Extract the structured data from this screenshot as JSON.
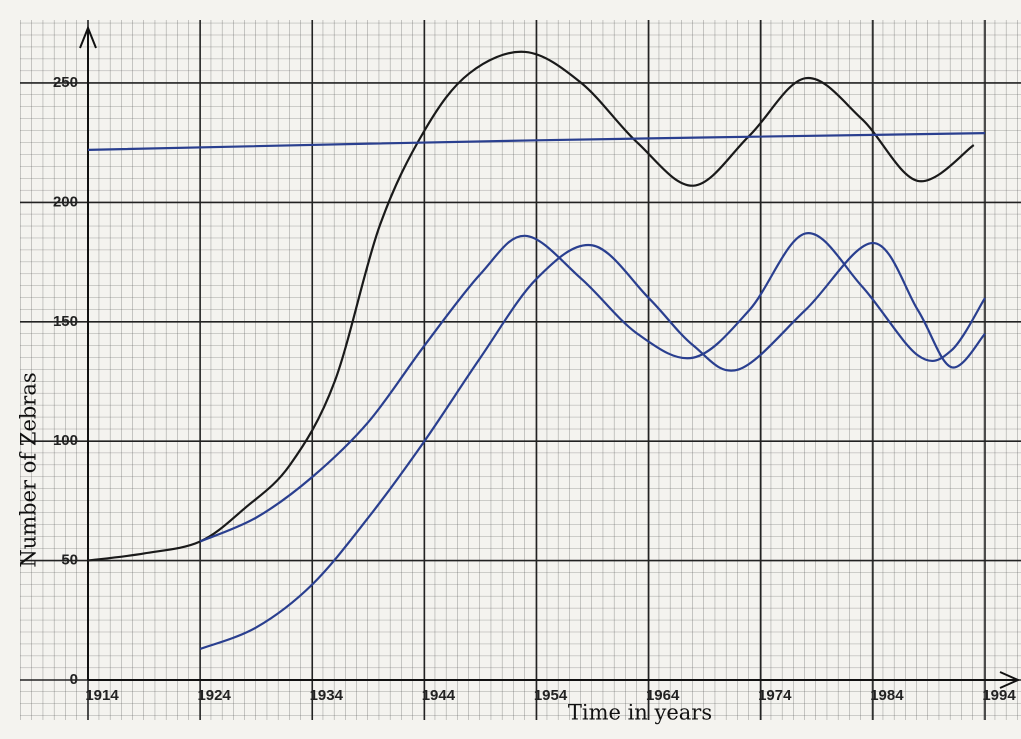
{
  "chart_data": {
    "type": "line",
    "x_label": "Time in years",
    "y_label": "Number of Zebras",
    "xlim": [
      1914,
      1994
    ],
    "ylim": [
      0,
      268
    ],
    "xticks": [
      1914,
      1924,
      1934,
      1944,
      1954,
      1964,
      1974,
      1984,
      1994
    ],
    "yticks": [
      0,
      50,
      100,
      150,
      200,
      250
    ],
    "grid": true,
    "series": [
      {
        "color": "#1a1a1a",
        "x": [
          1914,
          1919,
          1924,
          1928,
          1932,
          1936,
          1940,
          1944,
          1948,
          1953,
          1958,
          1963,
          1968,
          1973,
          1978,
          1983,
          1988,
          1993
        ],
        "values": [
          50,
          53,
          58,
          72,
          90,
          125,
          190,
          230,
          254,
          263,
          250,
          225,
          207,
          228,
          252,
          235,
          209,
          224
        ]
      },
      {
        "color": "#2a3f8f",
        "x": [
          1914,
          1954,
          1994
        ],
        "values": [
          222,
          226,
          229
        ]
      },
      {
        "color": "#2a3f8f",
        "x": [
          1924,
          1929,
          1934,
          1939,
          1944,
          1949,
          1953,
          1958,
          1963,
          1968,
          1973,
          1978,
          1983,
          1988,
          1991,
          1994
        ],
        "values": [
          58,
          68,
          85,
          108,
          140,
          170,
          186,
          168,
          145,
          135,
          155,
          187,
          165,
          136,
          138,
          160
        ]
      },
      {
        "color": "#2a3f8f",
        "x": [
          1924,
          1929,
          1934,
          1939,
          1944,
          1949,
          1954,
          1959,
          1964,
          1968,
          1972,
          1978,
          1984,
          1988,
          1991,
          1994
        ],
        "values": [
          13,
          22,
          40,
          68,
          100,
          135,
          168,
          182,
          160,
          140,
          130,
          155,
          183,
          155,
          131,
          145
        ]
      }
    ]
  }
}
